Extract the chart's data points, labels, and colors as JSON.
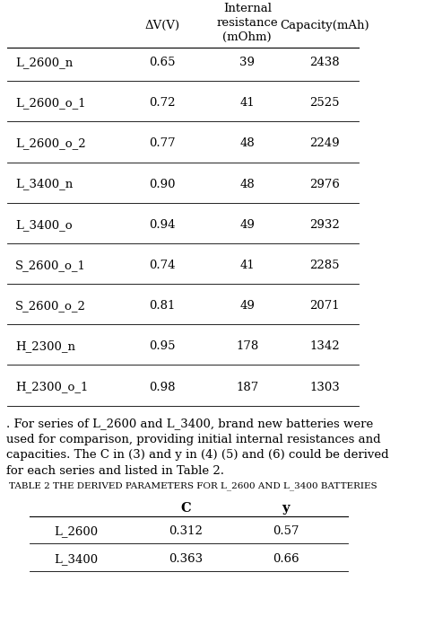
{
  "table1_headers": [
    "ΔV(V)",
    "Internal\nresistance\n(mOhm)",
    "Capacity(mAh)"
  ],
  "table1_rows": [
    [
      "L_2600_n",
      "0.65",
      "39",
      "2438"
    ],
    [
      "L_2600_o_1",
      "0.72",
      "41",
      "2525"
    ],
    [
      "L_2600_o_2",
      "0.77",
      "48",
      "2249"
    ],
    [
      "L_3400_n",
      "0.90",
      "48",
      "2976"
    ],
    [
      "L_3400_o",
      "0.94",
      "49",
      "2932"
    ],
    [
      "S_2600_o_1",
      "0.74",
      "41",
      "2285"
    ],
    [
      "S_2600_o_2",
      "0.81",
      "49",
      "2071"
    ],
    [
      "H_2300_n",
      "0.95",
      "178",
      "1342"
    ],
    [
      "H_2300_o_1",
      "0.98",
      "187",
      "1303"
    ]
  ],
  "paragraph": ". For series of L_2600 and L_3400, brand new batteries were\nused for comparison, providing initial internal resistances and\ncapacities. The C in (3) and y in (4) (5) and (6) could be derived\nfor each series and listed in Table 2.",
  "table2_title": "TABLE 2 THE DERIVED PARAMETERS FOR L_2600 AND L_3400 BATTERIES",
  "table2_headers": [
    "",
    "C",
    "y"
  ],
  "table2_rows": [
    [
      "L_2600",
      "0.312",
      "0.57"
    ],
    [
      "L_3400",
      "0.363",
      "0.66"
    ]
  ],
  "bg_color": "#ffffff",
  "text_color": "#000000",
  "font_size": 9.5,
  "header_font_size": 9.5
}
